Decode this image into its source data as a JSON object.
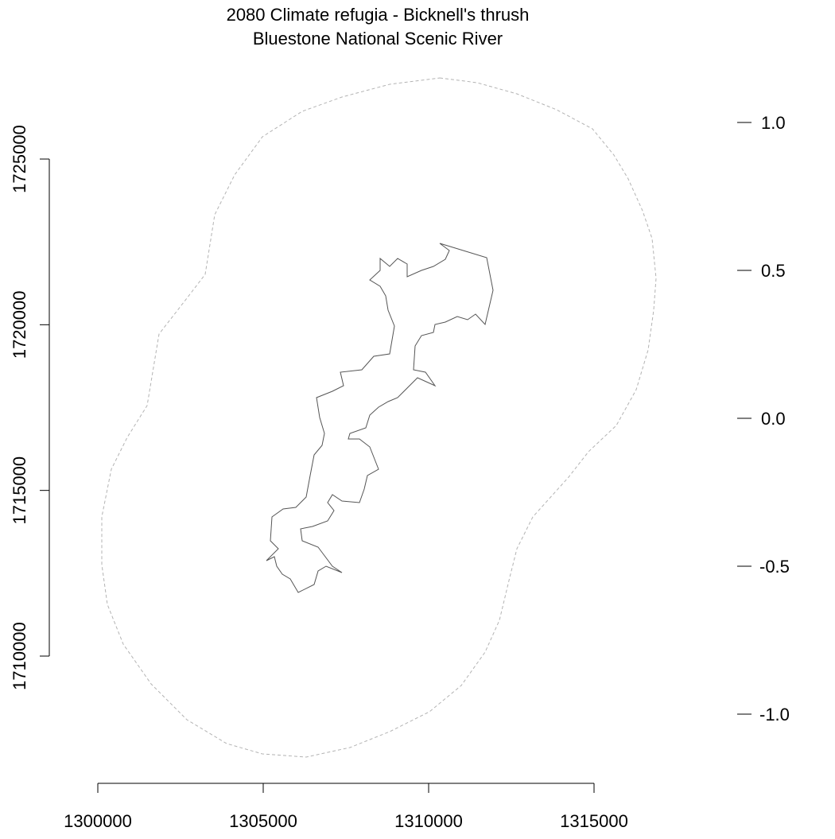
{
  "title": {
    "line1": "2080 Climate refugia - Bicknell's thrush",
    "line2": "Bluestone National Scenic River"
  },
  "x_axis": {
    "ticks": [
      1300000,
      1305000,
      1310000,
      1315000
    ],
    "tick_labels": [
      "1300000",
      "1305000",
      "1310000",
      "1315000"
    ]
  },
  "y_axis": {
    "ticks": [
      1710000,
      1715000,
      1720000,
      1725000
    ],
    "tick_labels": [
      "1710000",
      "1715000",
      "1720000",
      "1725000"
    ]
  },
  "legend_scale": {
    "ticks": [
      1.0,
      0.5,
      0.0,
      -0.5,
      -1.0
    ],
    "tick_labels": [
      "1.0",
      "0.5",
      "0.0",
      "-0.5",
      "-1.0"
    ]
  },
  "map_layers": {
    "buffer_boundary": {
      "style": "dashed",
      "color": "#b3b3b3"
    },
    "park_boundary": {
      "style": "solid",
      "color": "#555555"
    }
  },
  "chart_data": {
    "type": "map",
    "title": "2080 Climate refugia - Bicknell's thrush\nBluestone National Scenic River",
    "xlim": [
      1300000,
      1315000
    ],
    "ylim": [
      1710000,
      1725000
    ],
    "xticks": [
      1300000,
      1305000,
      1310000,
      1315000
    ],
    "yticks": [
      1710000,
      1715000,
      1720000,
      1725000
    ],
    "legend": {
      "position": "right",
      "ticks": [
        1.0,
        0.5,
        0.0,
        -0.5,
        -1.0
      ]
    }
  }
}
